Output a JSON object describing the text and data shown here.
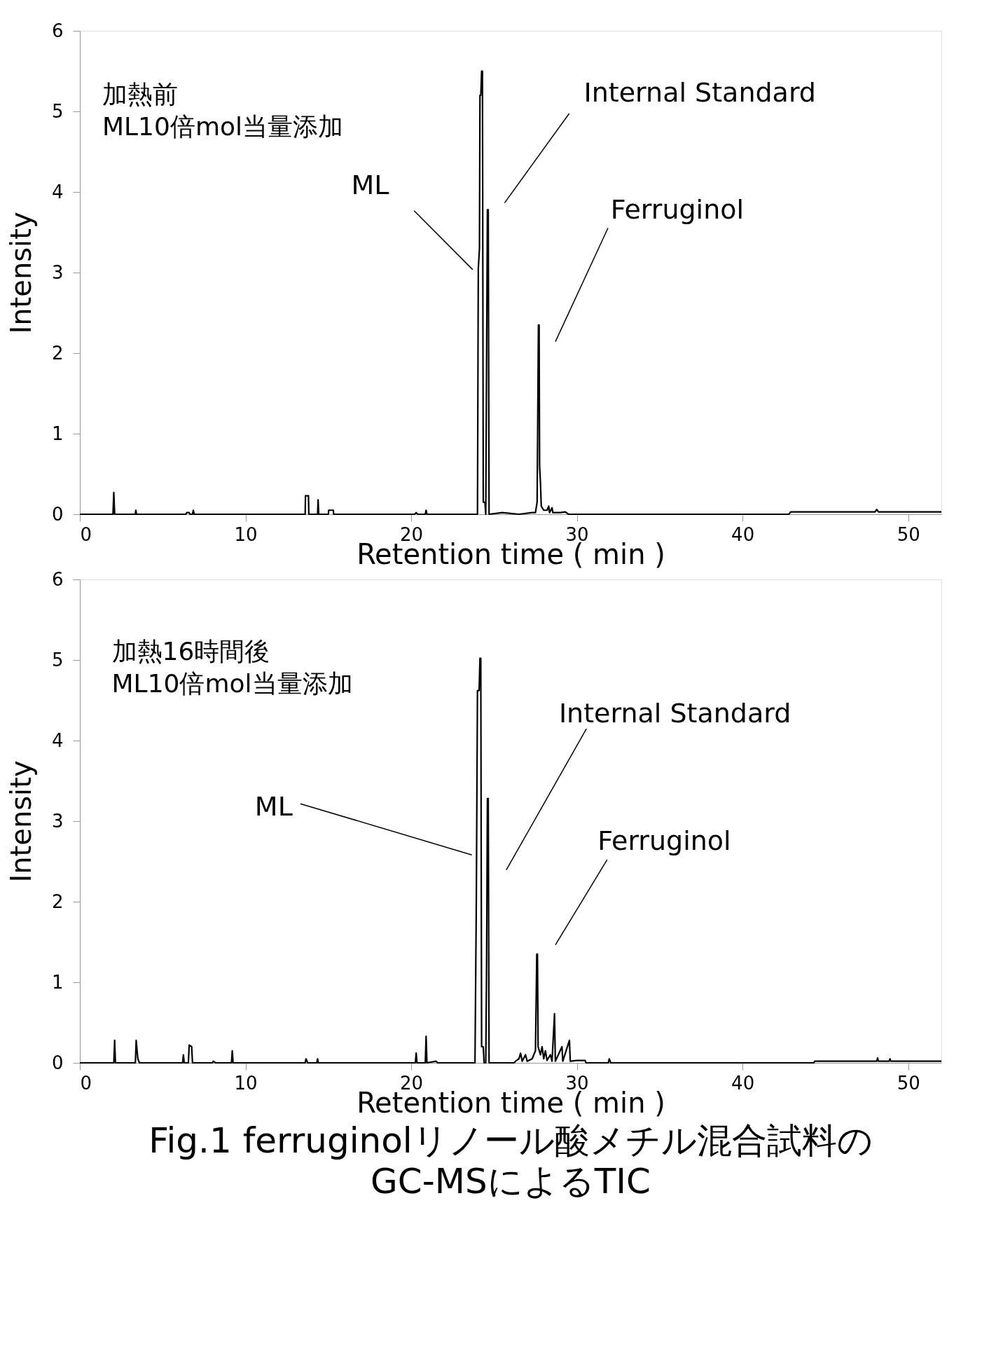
{
  "chart_data": [
    {
      "type": "line",
      "xlabel": "Retention  time ( min )",
      "ylabel": "Intensity",
      "xlim": [
        0,
        52
      ],
      "ylim": [
        0,
        6
      ],
      "xticks": [
        0,
        10,
        20,
        30,
        40,
        50
      ],
      "yticks": [
        0,
        1,
        2,
        3,
        4,
        5,
        6
      ],
      "grid": false,
      "marker": "none",
      "line_style": "solid",
      "annotations": [
        "加熱前\nML10倍mol当量添加",
        "ML",
        "Internal Standard",
        "Ferruginol"
      ],
      "series": [
        {
          "color": "#000000",
          "x": [
            0,
            2.0,
            2.05,
            2.1,
            3.35,
            3.38,
            3.42,
            6.4,
            6.45,
            6.6,
            6.65,
            6.8,
            6.85,
            6.9,
            13.6,
            13.62,
            13.8,
            13.82,
            14.35,
            14.38,
            14.42,
            15.0,
            15.02,
            15.3,
            15.32,
            20.2,
            20.3,
            20.4,
            20.85,
            20.9,
            20.95,
            24.0,
            24.05,
            24.12,
            24.15,
            24.2,
            24.25,
            24.3,
            24.35,
            24.45,
            24.5,
            24.55,
            24.6,
            24.65,
            24.7,
            25.5,
            26.5,
            27.3,
            27.5,
            27.6,
            27.68,
            27.72,
            27.75,
            27.8,
            27.85,
            28.0,
            28.2,
            28.3,
            28.35,
            28.5,
            28.55,
            29.0,
            29.3,
            29.5,
            42.8,
            42.9,
            48.0,
            48.1,
            48.2,
            52
          ],
          "values": [
            0,
            0,
            0.27,
            0,
            0,
            0.05,
            0,
            0,
            0.02,
            0.02,
            0,
            0,
            0.05,
            0,
            0,
            0.23,
            0.23,
            0,
            0,
            0.18,
            0,
            0,
            0.05,
            0.05,
            0,
            0,
            0.02,
            0,
            0,
            0.05,
            0,
            0,
            3.05,
            3.3,
            5.2,
            5.2,
            5.5,
            5.5,
            0.15,
            0.15,
            0,
            1.9,
            3.78,
            3.78,
            0,
            0.02,
            0,
            0.02,
            0.02,
            0.15,
            2.35,
            2.35,
            0.6,
            0.4,
            0.1,
            0.05,
            0.05,
            0.1,
            0.02,
            0.08,
            0.02,
            0.02,
            0.03,
            0,
            0,
            0.03,
            0.03,
            0.06,
            0.03,
            0.03
          ]
        }
      ]
    },
    {
      "type": "line",
      "title": "Fig.1  ferruginolリノール酸メチル混合試料の\nGC-MSによるTIC",
      "xlabel": "Retention  time ( min )",
      "ylabel": "Intensity",
      "xlim": [
        0,
        52
      ],
      "ylim": [
        0,
        6
      ],
      "xticks": [
        0,
        10,
        20,
        30,
        40,
        50
      ],
      "yticks": [
        0,
        1,
        2,
        3,
        4,
        5,
        6
      ],
      "grid": false,
      "marker": "none",
      "line_style": "solid",
      "annotations": [
        "加熱16時間後\nML10倍mol当量添加",
        "ML",
        "Internal Standard",
        "Ferruginol"
      ],
      "series": [
        {
          "color": "#000000",
          "x": [
            0,
            2.05,
            2.1,
            2.15,
            3.35,
            3.4,
            3.5,
            3.6,
            6.2,
            6.25,
            6.3,
            6.55,
            6.6,
            6.75,
            6.8,
            8.0,
            8.05,
            8.2,
            9.15,
            9.2,
            9.25,
            13.6,
            13.65,
            13.75,
            14.3,
            14.35,
            14.4,
            20.25,
            20.3,
            20.35,
            20.85,
            20.9,
            20.95,
            21.5,
            21.6,
            23.85,
            23.93,
            24.0,
            24.1,
            24.15,
            24.2,
            24.25,
            24.35,
            24.4,
            24.5,
            24.55,
            24.6,
            24.65,
            24.7,
            26.2,
            26.3,
            26.5,
            26.6,
            26.7,
            26.9,
            27.0,
            27.3,
            27.5,
            27.58,
            27.62,
            27.66,
            27.8,
            27.9,
            28.0,
            28.1,
            28.2,
            28.4,
            28.5,
            28.65,
            28.7,
            29.1,
            29.15,
            29.55,
            29.6,
            30.0,
            30.5,
            30.55,
            31.9,
            31.95,
            32.05,
            44.3,
            44.35,
            48.1,
            48.15,
            48.2,
            48.85,
            48.9,
            48.95,
            52
          ],
          "values": [
            0,
            0,
            0.28,
            0,
            0,
            0.28,
            0.05,
            0,
            0,
            0.1,
            0,
            0,
            0.22,
            0.2,
            0,
            0,
            0.02,
            0,
            0,
            0.15,
            0,
            0,
            0.05,
            0,
            0,
            0.05,
            0,
            0,
            0.12,
            0,
            0,
            0.33,
            0,
            0.02,
            0,
            0,
            2.0,
            4.62,
            4.62,
            5.02,
            5.02,
            0.2,
            0.2,
            0,
            0,
            1.2,
            3.28,
            3.28,
            0,
            0,
            0.02,
            0.05,
            0.12,
            0.02,
            0.1,
            0.02,
            0.05,
            0.15,
            1.35,
            1.35,
            0.2,
            0.1,
            0.2,
            0.05,
            0.15,
            0.03,
            0.1,
            0.02,
            0.61,
            0.02,
            0.2,
            0.02,
            0.28,
            0.02,
            0.03,
            0.03,
            0,
            0,
            0.05,
            0,
            0,
            0.02,
            0.02,
            0.06,
            0.02,
            0.02,
            0.05,
            0.02,
            0.02
          ]
        }
      ]
    }
  ]
}
